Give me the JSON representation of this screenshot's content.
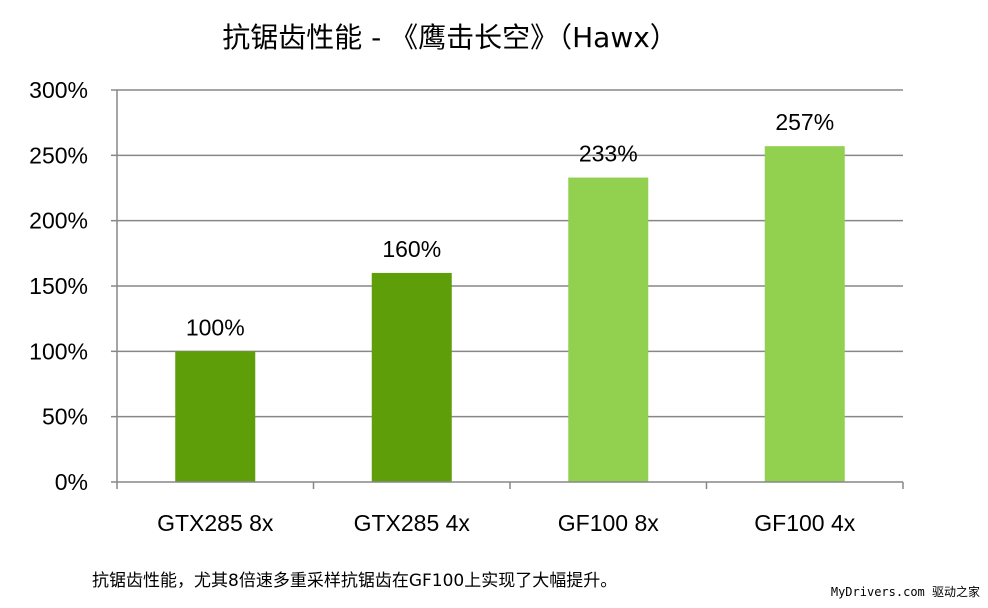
{
  "caption": "抗锯齿性能，尤其8倍速多重采样抗锯齿在GF100上实现了大幅提升。",
  "watermark": "MyDrivers.com 驱动之家",
  "chart_data": {
    "type": "bar",
    "title": "抗锯齿性能 - 《鹰击长空》（Hawx）",
    "categories": [
      "GTX285 8x",
      "GTX285 4x",
      "GF100 8x",
      "GF100 4x"
    ],
    "values": [
      100,
      160,
      233,
      257
    ],
    "data_labels": [
      "100%",
      "160%",
      "233%",
      "257%"
    ],
    "bar_colors": [
      "#5e9e08",
      "#5e9e08",
      "#92d050",
      "#92d050"
    ],
    "ylim": [
      0,
      300
    ],
    "yticks": [
      0,
      50,
      100,
      150,
      200,
      250,
      300
    ],
    "ytick_labels": [
      "0%",
      "50%",
      "100%",
      "150%",
      "200%",
      "250%",
      "300%"
    ],
    "grid": true,
    "xlabel": "",
    "ylabel": ""
  }
}
